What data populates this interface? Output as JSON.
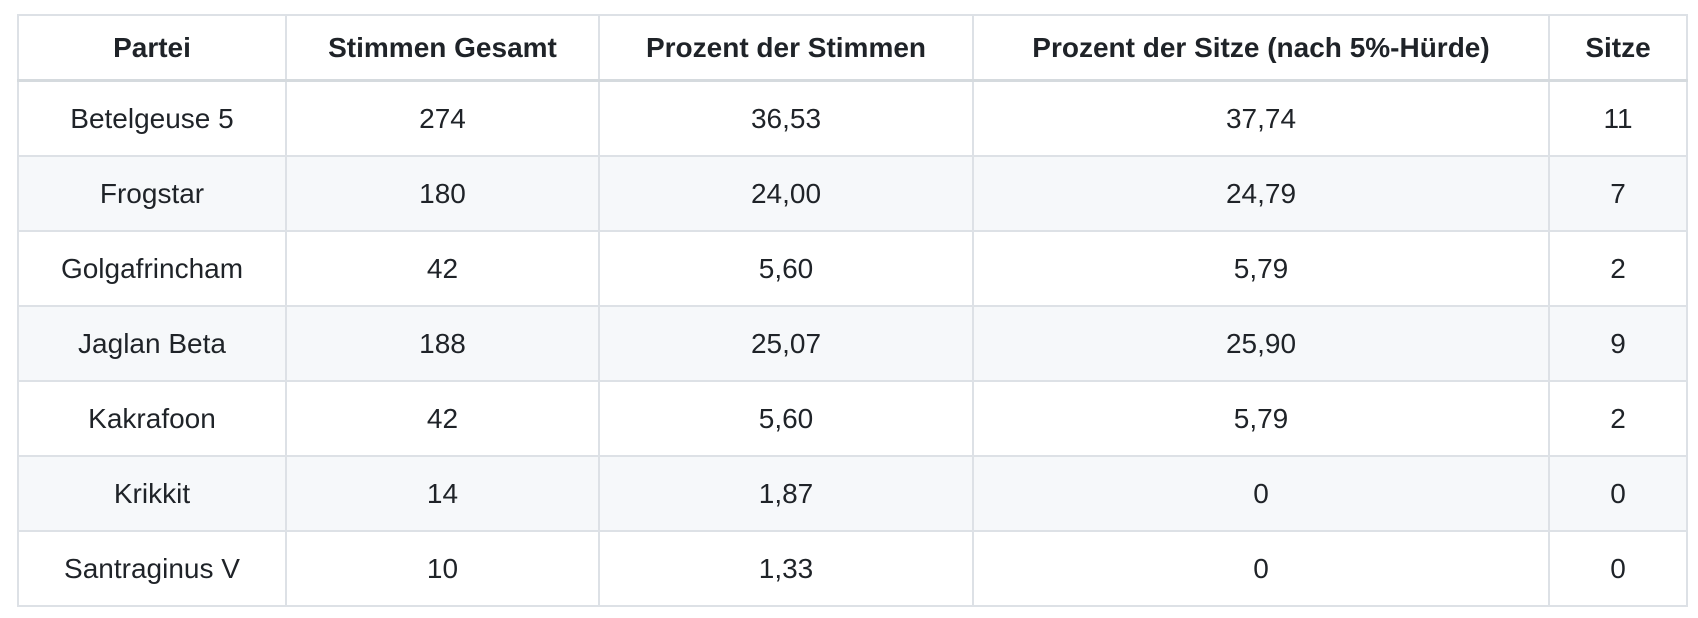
{
  "chart_data": {
    "type": "table",
    "title": "",
    "columns": [
      "Partei",
      "Stimmen Gesamt",
      "Prozent der Stimmen",
      "Prozent der Sitze (nach 5%-Hürde)",
      "Sitze"
    ],
    "rows": [
      [
        "Betelgeuse 5",
        "274",
        "36,53",
        "37,74",
        "11"
      ],
      [
        "Frogstar",
        "180",
        "24,00",
        "24,79",
        "7"
      ],
      [
        "Golgafrincham",
        "42",
        "5,60",
        "5,79",
        "2"
      ],
      [
        "Jaglan Beta",
        "188",
        "25,07",
        "25,90",
        "9"
      ],
      [
        "Kakrafoon",
        "42",
        "5,60",
        "5,79",
        "2"
      ],
      [
        "Krikkit",
        "14",
        "1,87",
        "0",
        "0"
      ],
      [
        "Santraginus V",
        "10",
        "1,33",
        "0",
        "0"
      ]
    ],
    "layout": {
      "alignment": "center",
      "striped_rows": "even",
      "grid": true
    }
  },
  "colors": {
    "text": "#1f2328",
    "border": "#dde1e6",
    "stripe_row_bg": "#f6f8fa",
    "background": "#ffffff"
  }
}
